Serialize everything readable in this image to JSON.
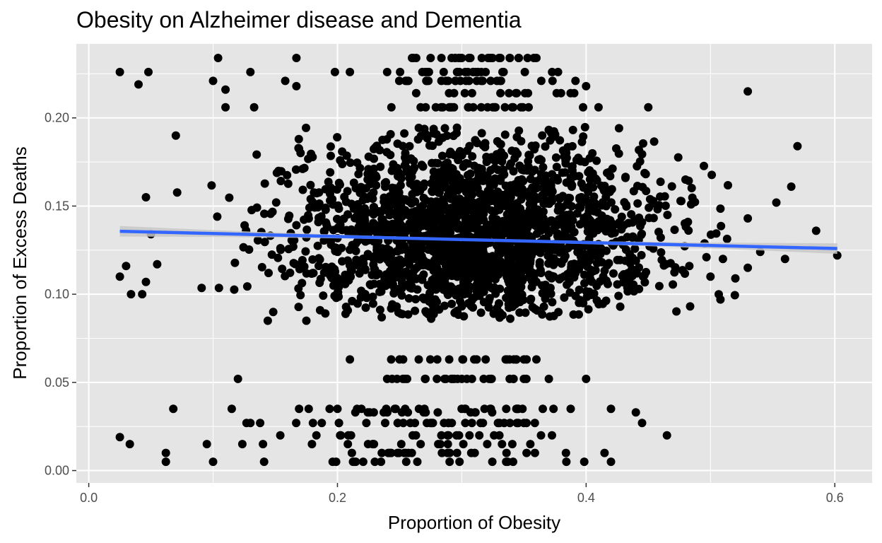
{
  "chart_data": {
    "type": "scatter",
    "title": "Obesity on Alzheimer disease and Dementia",
    "xlabel": "Proportion of Obesity",
    "ylabel": "Proportion of Excess Deaths",
    "xlim": [
      -0.01,
      0.63
    ],
    "ylim": [
      -0.007,
      0.242
    ],
    "x_ticks": [
      0.0,
      0.2,
      0.4,
      0.6
    ],
    "x_tick_labels": [
      "0.0",
      "0.2",
      "0.4",
      "0.6"
    ],
    "y_ticks": [
      0.0,
      0.05,
      0.1,
      0.15,
      0.2
    ],
    "y_tick_labels": [
      "0.00",
      "0.05",
      "0.10",
      "0.15",
      "0.20"
    ],
    "grid": true,
    "legend": "none",
    "colors": {
      "panel": "#e5e5e5",
      "grid": "#ffffff",
      "point": "#000000",
      "smooth_line": "#3366ff",
      "smooth_band": "#c8c8c8"
    },
    "scatter_points_sample": [
      [
        0.025,
        0.226
      ],
      [
        0.04,
        0.219
      ],
      [
        0.048,
        0.226
      ],
      [
        0.1,
        0.221
      ],
      [
        0.104,
        0.234
      ],
      [
        0.11,
        0.216
      ],
      [
        0.11,
        0.206
      ],
      [
        0.13,
        0.226
      ],
      [
        0.133,
        0.206
      ],
      [
        0.158,
        0.221
      ],
      [
        0.167,
        0.234
      ],
      [
        0.167,
        0.218
      ],
      [
        0.198,
        0.226
      ],
      [
        0.21,
        0.226
      ],
      [
        0.24,
        0.226
      ],
      [
        0.26,
        0.234
      ],
      [
        0.3,
        0.234
      ],
      [
        0.33,
        0.234
      ],
      [
        0.36,
        0.234
      ],
      [
        0.4,
        0.218
      ],
      [
        0.41,
        0.206
      ],
      [
        0.45,
        0.206
      ],
      [
        0.53,
        0.215
      ],
      [
        0.07,
        0.19
      ],
      [
        0.046,
        0.155
      ],
      [
        0.57,
        0.184
      ],
      [
        0.565,
        0.161
      ],
      [
        0.553,
        0.152
      ],
      [
        0.53,
        0.143
      ],
      [
        0.585,
        0.136
      ],
      [
        0.602,
        0.122
      ],
      [
        0.025,
        0.11
      ],
      [
        0.03,
        0.116
      ],
      [
        0.034,
        0.1
      ],
      [
        0.043,
        0.1
      ],
      [
        0.046,
        0.107
      ],
      [
        0.05,
        0.134
      ],
      [
        0.055,
        0.117
      ],
      [
        0.144,
        0.085
      ],
      [
        0.175,
        0.085
      ],
      [
        0.53,
        0.115
      ],
      [
        0.52,
        0.109
      ],
      [
        0.508,
        0.097
      ],
      [
        0.5,
        0.11
      ],
      [
        0.51,
        0.12
      ],
      [
        0.56,
        0.12
      ],
      [
        0.54,
        0.124
      ],
      [
        0.21,
        0.063
      ],
      [
        0.12,
        0.052
      ],
      [
        0.24,
        0.052
      ],
      [
        0.28,
        0.052
      ],
      [
        0.31,
        0.063
      ],
      [
        0.36,
        0.063
      ],
      [
        0.37,
        0.052
      ],
      [
        0.4,
        0.052
      ],
      [
        0.025,
        0.019
      ],
      [
        0.033,
        0.015
      ],
      [
        0.062,
        0.01
      ],
      [
        0.062,
        0.005
      ],
      [
        0.068,
        0.035
      ],
      [
        0.115,
        0.035
      ],
      [
        0.095,
        0.015
      ],
      [
        0.1,
        0.005
      ],
      [
        0.13,
        0.027
      ],
      [
        0.2,
        0.035
      ],
      [
        0.44,
        0.033
      ],
      [
        0.445,
        0.027
      ],
      [
        0.465,
        0.02
      ],
      [
        0.42,
        0.005
      ],
      [
        0.42,
        0.035
      ]
    ],
    "core_cloud": {
      "x_mean": 0.31,
      "x_sd": 0.075,
      "y_mean": 0.135,
      "y_sd": 0.028,
      "y_min": 0.085,
      "y_max": 0.195
    },
    "bands": {
      "upper": {
        "y_values": [
          0.206,
          0.214,
          0.221,
          0.226,
          0.234
        ],
        "x_min": 0.2,
        "x_max": 0.42
      },
      "middle": {
        "y_values": [
          0.052,
          0.063
        ],
        "x_min": 0.21,
        "x_max": 0.4
      },
      "lower": {
        "y_values": [
          0.005,
          0.01,
          0.015,
          0.02,
          0.027,
          0.033,
          0.035
        ],
        "x_min": 0.09,
        "x_max": 0.45
      }
    },
    "smooth": {
      "method": "lm",
      "x": [
        0.025,
        0.602
      ],
      "y": [
        0.1357,
        0.1259
      ],
      "se_halfwidth_ends": 0.003,
      "se_halfwidth_center": 0.0007
    }
  }
}
